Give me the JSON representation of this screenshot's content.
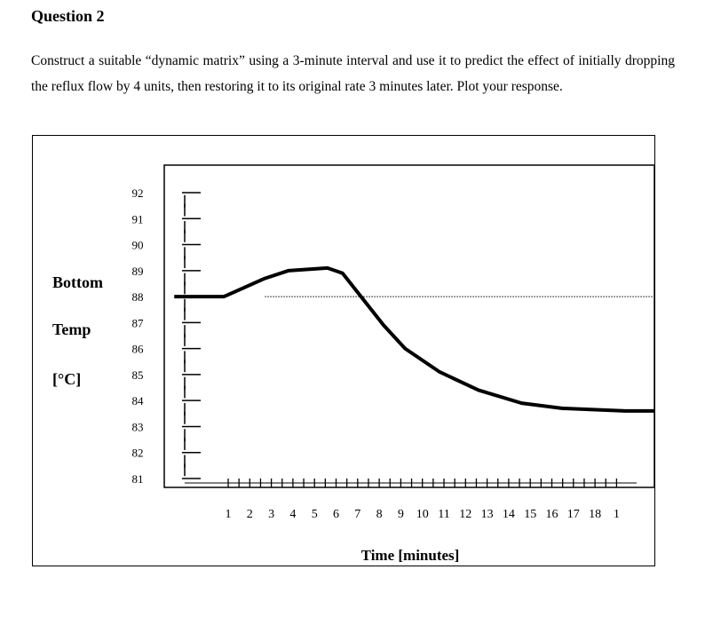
{
  "question": {
    "heading": "Question 2",
    "text": "Construct a suitable “dynamic matrix” using a 3-minute interval and use it to predict the effect of initially dropping the reflux flow by 4 units, then restoring it to its original rate 3 minutes later. Plot your response."
  },
  "chart_data": {
    "type": "line",
    "ylabel_lines": [
      "Bottom",
      "Temp",
      "[°C]"
    ],
    "xlabel": "Time  [minutes]",
    "yticks": [
      81,
      82,
      83,
      84,
      85,
      86,
      87,
      88,
      89,
      90,
      91,
      92
    ],
    "xticks": [
      "1",
      "2",
      "3",
      "4",
      "5",
      "6",
      "7",
      "8",
      "9",
      "10",
      "11",
      "12",
      "13",
      "14",
      "15",
      "16",
      "17",
      "18",
      "1"
    ],
    "series": [
      {
        "x": [
          -1.5,
          0.8,
          2.7,
          3.8,
          5.6,
          6.3,
          8.2,
          9.2,
          10.8,
          12.6,
          14.6,
          16.5,
          19.4,
          21.7
        ],
        "y": [
          88.0,
          88.0,
          88.7,
          89.0,
          89.1,
          88.9,
          86.9,
          86.0,
          85.1,
          84.4,
          83.9,
          83.7,
          83.6,
          83.6
        ]
      }
    ],
    "reference_line": {
      "y": 88.0,
      "style": "dotted"
    },
    "grid": false,
    "legend": "none"
  }
}
